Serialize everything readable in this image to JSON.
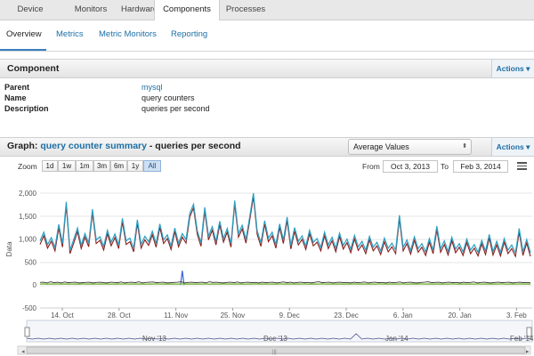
{
  "top_nav": [
    "Device",
    "Monitors",
    "Hardware",
    "Components",
    "Processes"
  ],
  "sub_nav": [
    "Overview",
    "Metrics",
    "Metric Monitors",
    "Reporting"
  ],
  "component_panel": {
    "title": "Component",
    "actions_label": "Actions",
    "fields": [
      {
        "label": "Parent",
        "value": "mysql"
      },
      {
        "label": "Name",
        "value": "query counters"
      },
      {
        "label": "Description",
        "value": "queries per second"
      }
    ]
  },
  "graph_panel": {
    "title_prefix": "Graph:",
    "title_link": "query counter summary",
    "title_suffix": " - queries per second",
    "aggregation_select": "Average Values",
    "actions_label": "Actions",
    "zoom_label": "Zoom",
    "zoom_buttons": [
      "1d",
      "1w",
      "1m",
      "3m",
      "6m",
      "1y",
      "All"
    ],
    "zoom_selected": "All",
    "from_label": "From",
    "from_value": "Oct 3, 2013",
    "to_label": "To",
    "to_value": "Feb 3, 2014"
  },
  "chart_data": {
    "type": "line",
    "ylabel": "Data",
    "ylim": [
      -500,
      2000
    ],
    "y_ticks": [
      "2,000",
      "1,500",
      "1,000",
      "500",
      "0",
      "-500"
    ],
    "x_ticks": [
      "14. Oct",
      "28. Oct",
      "11. Nov",
      "25. Nov",
      "9. Dec",
      "23. Dec",
      "6. Jan",
      "20. Jan",
      "3. Feb"
    ],
    "navigator_ticks": [
      "Nov '13",
      "Dec '13",
      "Jan '14",
      "Feb '14"
    ],
    "series": [
      {
        "color": "#2a9fc2",
        "values": [
          960,
          1150,
          880,
          1030,
          820,
          1320,
          900,
          1080,
          760,
          990,
          1240,
          870,
          1120,
          910,
          1650,
          980,
          1050,
          840,
          1190,
          930,
          1110,
          870,
          1450,
          960,
          1020,
          800,
          1210,
          880,
          1060,
          940,
          1170,
          900,
          1330,
          980,
          1090,
          850,
          1240,
          910,
          1120,
          990,
          1560,
          1030,
          1180,
          920,
          1690,
          1060,
          1270,
          950,
          1390,
          1010,
          1230,
          900,
          1840,
          1120,
          1300,
          990,
          1480,
          1050,
          1180,
          920,
          1400,
          1020,
          1150,
          880,
          1330,
          980,
          1090,
          860,
          1250,
          950,
          1070,
          850,
          1190,
          930,
          1010,
          820,
          1150,
          870,
          1040,
          800,
          1130,
          860,
          1000,
          780,
          1080,
          830,
          950,
          760,
          1060,
          820,
          930,
          740,
          1020,
          800,
          910,
          760,
          1170,
          820,
          980,
          750,
          1050,
          790,
          900,
          720,
          1010,
          760,
          1280,
          790,
          960,
          730,
          1040,
          780,
          900,
          720,
          1000,
          760,
          880,
          710,
          970,
          740,
          1100,
          730,
          950,
          710,
          1010,
          760,
          870,
          700,
          920,
          720,
          990,
          700
        ],
        "spikes": [
          [
            7,
            1810
          ],
          [
            26,
            1420
          ],
          [
            41,
            1760
          ],
          [
            57,
            2000
          ],
          [
            66,
            1480
          ],
          [
            96,
            1520
          ],
          [
            128,
            1230
          ],
          [
            134,
            1140
          ]
        ]
      },
      {
        "color": "#3a3a3a",
        "values": [
          55,
          60,
          45,
          70,
          50,
          60,
          45,
          65,
          50,
          55,
          60,
          45,
          50,
          55,
          60,
          45,
          55,
          60,
          50,
          45,
          60,
          55,
          50,
          65,
          45,
          55,
          60,
          50,
          70,
          45,
          55,
          60,
          65,
          50,
          55,
          60,
          45,
          50,
          55,
          60,
          70,
          45,
          55,
          60,
          50,
          55,
          60,
          45,
          70,
          55,
          60,
          50,
          45,
          55,
          60,
          50,
          65,
          45,
          55,
          60,
          50,
          55,
          45,
          60,
          50,
          55,
          60,
          45,
          55,
          65,
          50,
          60,
          45,
          55,
          60,
          50,
          55,
          45,
          60,
          70,
          50,
          55,
          60,
          45,
          55,
          60,
          50,
          55,
          45,
          60,
          50,
          55,
          65,
          45,
          55,
          60,
          50,
          55,
          45,
          60,
          50,
          55,
          65,
          45,
          55,
          60,
          50,
          45,
          55,
          60,
          70,
          50,
          55,
          60,
          45,
          55,
          60,
          50,
          55,
          45,
          60,
          50,
          55,
          65,
          45,
          55,
          60,
          50,
          45,
          55,
          60,
          50,
          55,
          60,
          45,
          55,
          60,
          50,
          55,
          45
        ]
      },
      {
        "color": "#7ab53a",
        "values": [
          20,
          25,
          18,
          22,
          20,
          24,
          19,
          21,
          23,
          20,
          22,
          18,
          24,
          20,
          21,
          23,
          19,
          22,
          20,
          25,
          18,
          22,
          21,
          20,
          24,
          19,
          22,
          20,
          23,
          21,
          18,
          22,
          20,
          24,
          19,
          21,
          23,
          20,
          22,
          18,
          24,
          20,
          21,
          23,
          19,
          22,
          20,
          25,
          18,
          22,
          21,
          20,
          24,
          19,
          22,
          20,
          23,
          21,
          18,
          22,
          20,
          24,
          19,
          21,
          23,
          20,
          22,
          18,
          24,
          20,
          21,
          23,
          19,
          22,
          20,
          25,
          18,
          22,
          21,
          20,
          24,
          19,
          22,
          20,
          23,
          21,
          18,
          22,
          20,
          24,
          19,
          21,
          23,
          20,
          22,
          18,
          24,
          20,
          21,
          23,
          19,
          22,
          20,
          25,
          18,
          22,
          21,
          20,
          24,
          19,
          22,
          20,
          23,
          21,
          18,
          22,
          20,
          24,
          19,
          21,
          23,
          20,
          22,
          18,
          24,
          20,
          21,
          23,
          19,
          22,
          20,
          25,
          18,
          22,
          21,
          20,
          24,
          19,
          22,
          20
        ]
      },
      {
        "color": "#3c5fd6",
        "values": [
          0
        ],
        "spikes": [
          [
            38,
            310
          ]
        ]
      }
    ]
  }
}
